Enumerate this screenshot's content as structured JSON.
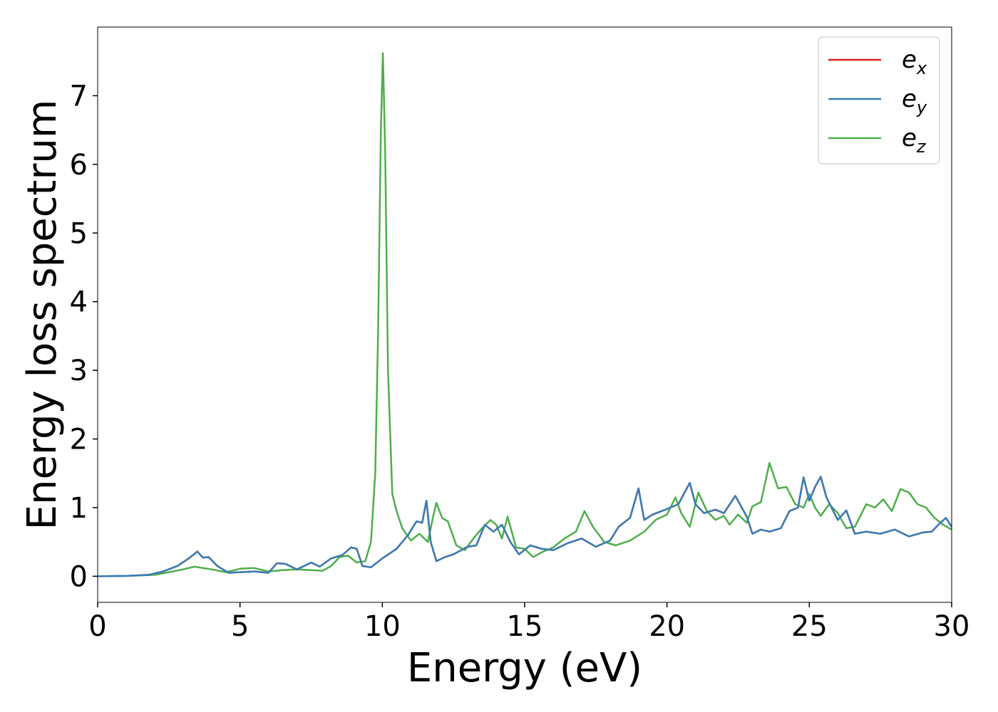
{
  "chart_data": {
    "type": "line",
    "title": "",
    "xlabel": "Energy (eV)",
    "ylabel": "Energy loss spectrum",
    "xlim": [
      0,
      30
    ],
    "ylim": [
      -0.38,
      8.0
    ],
    "xticks": [
      0,
      5,
      10,
      15,
      20,
      25,
      30
    ],
    "xtick_labels": [
      "0",
      "5",
      "10",
      "15",
      "20",
      "25",
      "30"
    ],
    "yticks": [
      0,
      1,
      2,
      3,
      4,
      5,
      6,
      7
    ],
    "ytick_labels": [
      "0",
      "1",
      "2",
      "3",
      "4",
      "5",
      "6",
      "7"
    ],
    "grid": false,
    "legend_position": "top-right",
    "series": [
      {
        "name": "e_x",
        "legend_base": "e",
        "legend_sub": "x",
        "color": "#e41a1c",
        "x": [
          0,
          1,
          1.8,
          2.3,
          2.8,
          3.2,
          3.5,
          3.7,
          3.9,
          4.2,
          4.6,
          5,
          5.5,
          6,
          6.3,
          6.6,
          7,
          7.5,
          7.8,
          8.2,
          8.6,
          8.9,
          9.1,
          9.3,
          9.6,
          10,
          10.5,
          10.9,
          11.2,
          11.4,
          11.55,
          11.7,
          11.9,
          12.2,
          12.5,
          13,
          13.3,
          13.6,
          13.9,
          14.2,
          14.5,
          14.8,
          15.2,
          15.6,
          16,
          16.5,
          17,
          17.5,
          18,
          18.3,
          18.7,
          19,
          19.2,
          19.5,
          20,
          20.4,
          20.8,
          21,
          21.3,
          21.7,
          22,
          22.4,
          22.8,
          23,
          23.3,
          23.6,
          24,
          24.3,
          24.6,
          24.8,
          25,
          25.2,
          25.4,
          25.6,
          26,
          26.3,
          26.6,
          27,
          27.5,
          28,
          28.5,
          29,
          29.3,
          29.6,
          29.8,
          30
        ],
        "y": [
          0,
          0.005,
          0.02,
          0.07,
          0.15,
          0.26,
          0.36,
          0.27,
          0.28,
          0.15,
          0.05,
          0.06,
          0.07,
          0.05,
          0.19,
          0.18,
          0.1,
          0.2,
          0.14,
          0.26,
          0.31,
          0.42,
          0.4,
          0.15,
          0.13,
          0.26,
          0.4,
          0.6,
          0.8,
          0.78,
          1.1,
          0.5,
          0.22,
          0.28,
          0.32,
          0.43,
          0.45,
          0.75,
          0.65,
          0.75,
          0.5,
          0.32,
          0.45,
          0.4,
          0.38,
          0.48,
          0.55,
          0.43,
          0.52,
          0.72,
          0.85,
          1.28,
          0.82,
          0.9,
          0.98,
          1.05,
          1.36,
          1.05,
          0.92,
          0.97,
          0.92,
          1.17,
          0.87,
          0.62,
          0.68,
          0.65,
          0.7,
          0.95,
          1.0,
          1.44,
          1.1,
          1.3,
          1.45,
          1.15,
          0.82,
          0.96,
          0.62,
          0.65,
          0.62,
          0.68,
          0.58,
          0.64,
          0.65,
          0.78,
          0.85,
          0.72
        ]
      },
      {
        "name": "e_y",
        "legend_base": "e",
        "legend_sub": "y",
        "color": "#377eb8",
        "x": [
          0,
          1,
          1.8,
          2.3,
          2.8,
          3.2,
          3.5,
          3.7,
          3.9,
          4.2,
          4.6,
          5,
          5.5,
          6,
          6.3,
          6.6,
          7,
          7.5,
          7.8,
          8.2,
          8.6,
          8.9,
          9.1,
          9.3,
          9.6,
          10,
          10.5,
          10.9,
          11.2,
          11.4,
          11.55,
          11.7,
          11.9,
          12.2,
          12.5,
          13,
          13.3,
          13.6,
          13.9,
          14.2,
          14.5,
          14.8,
          15.2,
          15.6,
          16,
          16.5,
          17,
          17.5,
          18,
          18.3,
          18.7,
          19,
          19.2,
          19.5,
          20,
          20.4,
          20.8,
          21,
          21.3,
          21.7,
          22,
          22.4,
          22.8,
          23,
          23.3,
          23.6,
          24,
          24.3,
          24.6,
          24.8,
          25,
          25.2,
          25.4,
          25.6,
          26,
          26.3,
          26.6,
          27,
          27.5,
          28,
          28.5,
          29,
          29.3,
          29.6,
          29.8,
          30
        ],
        "y": [
          0,
          0.005,
          0.02,
          0.07,
          0.15,
          0.26,
          0.36,
          0.27,
          0.28,
          0.15,
          0.05,
          0.06,
          0.07,
          0.05,
          0.19,
          0.18,
          0.1,
          0.2,
          0.14,
          0.26,
          0.31,
          0.42,
          0.4,
          0.15,
          0.13,
          0.26,
          0.4,
          0.6,
          0.8,
          0.78,
          1.1,
          0.5,
          0.22,
          0.28,
          0.32,
          0.43,
          0.45,
          0.75,
          0.65,
          0.75,
          0.5,
          0.32,
          0.45,
          0.4,
          0.38,
          0.48,
          0.55,
          0.43,
          0.52,
          0.72,
          0.85,
          1.28,
          0.82,
          0.9,
          0.98,
          1.05,
          1.36,
          1.05,
          0.92,
          0.97,
          0.92,
          1.17,
          0.87,
          0.62,
          0.68,
          0.65,
          0.7,
          0.95,
          1.0,
          1.44,
          1.1,
          1.3,
          1.45,
          1.15,
          0.82,
          0.96,
          0.62,
          0.65,
          0.62,
          0.68,
          0.58,
          0.64,
          0.65,
          0.78,
          0.85,
          0.72
        ]
      },
      {
        "name": "e_z",
        "legend_base": "e",
        "legend_sub": "z",
        "color": "#4daf4a",
        "x": [
          0,
          1,
          2,
          2.5,
          3,
          3.4,
          3.7,
          4,
          4.5,
          5,
          5.5,
          6,
          6.5,
          7,
          7.5,
          7.9,
          8.2,
          8.5,
          8.8,
          9.1,
          9.4,
          9.6,
          9.75,
          9.85,
          9.95,
          10.02,
          10.1,
          10.2,
          10.35,
          10.5,
          10.7,
          11,
          11.3,
          11.6,
          11.8,
          11.9,
          12.1,
          12.3,
          12.6,
          12.9,
          13.2,
          13.5,
          13.8,
          14,
          14.2,
          14.4,
          14.7,
          15,
          15.3,
          15.6,
          16,
          16.4,
          16.8,
          17.1,
          17.4,
          17.8,
          18.2,
          18.7,
          19.2,
          19.6,
          20,
          20.3,
          20.5,
          20.8,
          21.1,
          21.4,
          21.7,
          22,
          22.2,
          22.5,
          22.8,
          23,
          23.3,
          23.6,
          23.9,
          24.2,
          24.5,
          24.8,
          25,
          25.2,
          25.4,
          25.7,
          26,
          26.3,
          26.6,
          27,
          27.3,
          27.6,
          27.9,
          28.2,
          28.5,
          28.8,
          29.1,
          29.4,
          29.7,
          30
        ],
        "y": [
          0,
          0.005,
          0.02,
          0.06,
          0.1,
          0.14,
          0.12,
          0.1,
          0.06,
          0.11,
          0.12,
          0.07,
          0.09,
          0.1,
          0.09,
          0.08,
          0.15,
          0.28,
          0.3,
          0.2,
          0.22,
          0.5,
          1.5,
          3.5,
          6.5,
          7.62,
          6.2,
          3.0,
          1.2,
          0.95,
          0.7,
          0.52,
          0.62,
          0.5,
          0.9,
          1.07,
          0.85,
          0.8,
          0.45,
          0.38,
          0.55,
          0.7,
          0.82,
          0.75,
          0.55,
          0.87,
          0.42,
          0.4,
          0.28,
          0.35,
          0.42,
          0.55,
          0.65,
          0.95,
          0.72,
          0.5,
          0.45,
          0.52,
          0.65,
          0.82,
          0.9,
          1.15,
          0.92,
          0.72,
          1.22,
          0.95,
          0.82,
          0.88,
          0.75,
          0.9,
          0.78,
          1.02,
          1.08,
          1.65,
          1.28,
          1.3,
          1.05,
          1.0,
          1.2,
          1.0,
          0.88,
          1.05,
          0.92,
          0.7,
          0.72,
          1.05,
          1.0,
          1.12,
          0.95,
          1.27,
          1.22,
          1.05,
          1.0,
          0.85,
          0.75,
          0.68
        ]
      }
    ]
  }
}
